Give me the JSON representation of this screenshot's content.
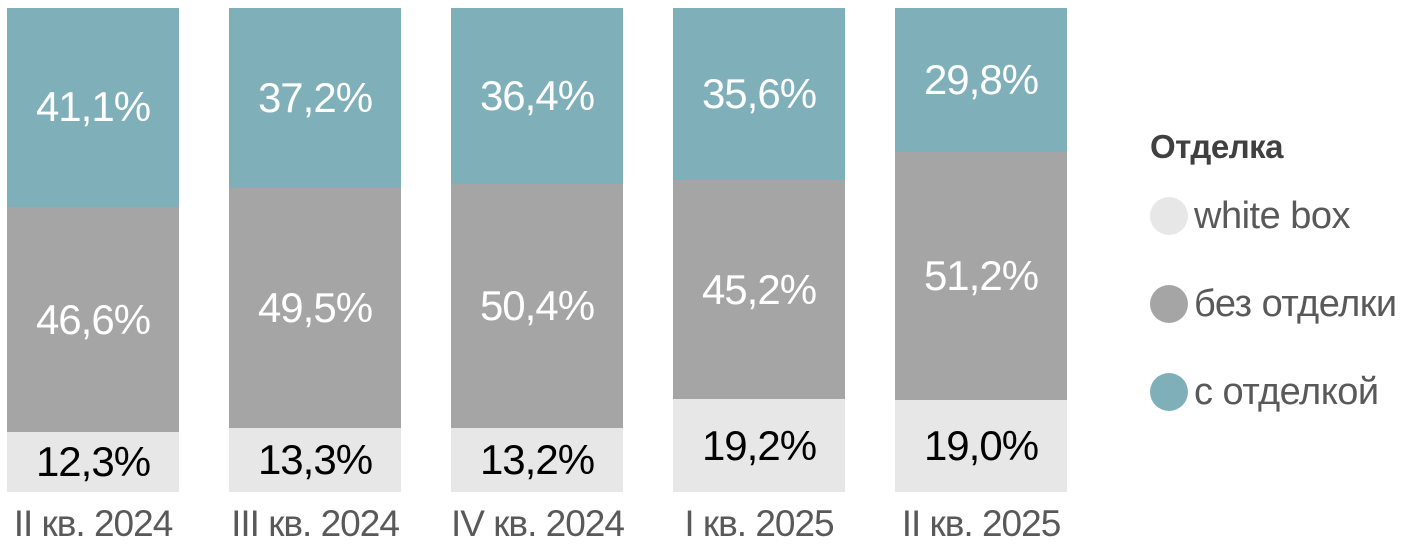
{
  "chart_data": {
    "type": "bar",
    "stacked": true,
    "orientation": "vertical",
    "unit": "%",
    "title": "",
    "xlabel": "",
    "ylabel": "",
    "ylim": [
      0,
      100
    ],
    "grid": false,
    "axes_visible": false,
    "categories": [
      "II кв. 2024",
      "III кв. 2024",
      "IV кв. 2024",
      "I кв. 2025",
      "II кв. 2025"
    ],
    "series": [
      {
        "name": "white box",
        "color": "#E7E7E7",
        "label_color": "#000000",
        "values": [
          12.3,
          13.3,
          13.2,
          19.2,
          19.0
        ],
        "labels": [
          "12,3%",
          "13,3%",
          "13,2%",
          "19,2%",
          "19,0%"
        ]
      },
      {
        "name": "без отделки",
        "color": "#A5A5A5",
        "label_color": "#FFFFFF",
        "values": [
          46.6,
          49.5,
          50.4,
          45.2,
          51.2
        ],
        "labels": [
          "46,6%",
          "49,5%",
          "50,4%",
          "45,2%",
          "51,2%"
        ]
      },
      {
        "name": "с отделкой",
        "color": "#7FB0B9",
        "label_color": "#FFFFFF",
        "values": [
          41.1,
          37.2,
          36.4,
          35.6,
          29.8
        ],
        "labels": [
          "41,1%",
          "37,2%",
          "36,4%",
          "35,6%",
          "29,8%"
        ]
      }
    ],
    "legend": {
      "title": "Отделка",
      "position": "right",
      "items": [
        "white box",
        "без отделки",
        "с отделкой"
      ]
    }
  },
  "colors": {
    "background": "#FFFFFF",
    "category_label": "#595959",
    "legend_title": "#404040",
    "legend_label": "#595959"
  }
}
